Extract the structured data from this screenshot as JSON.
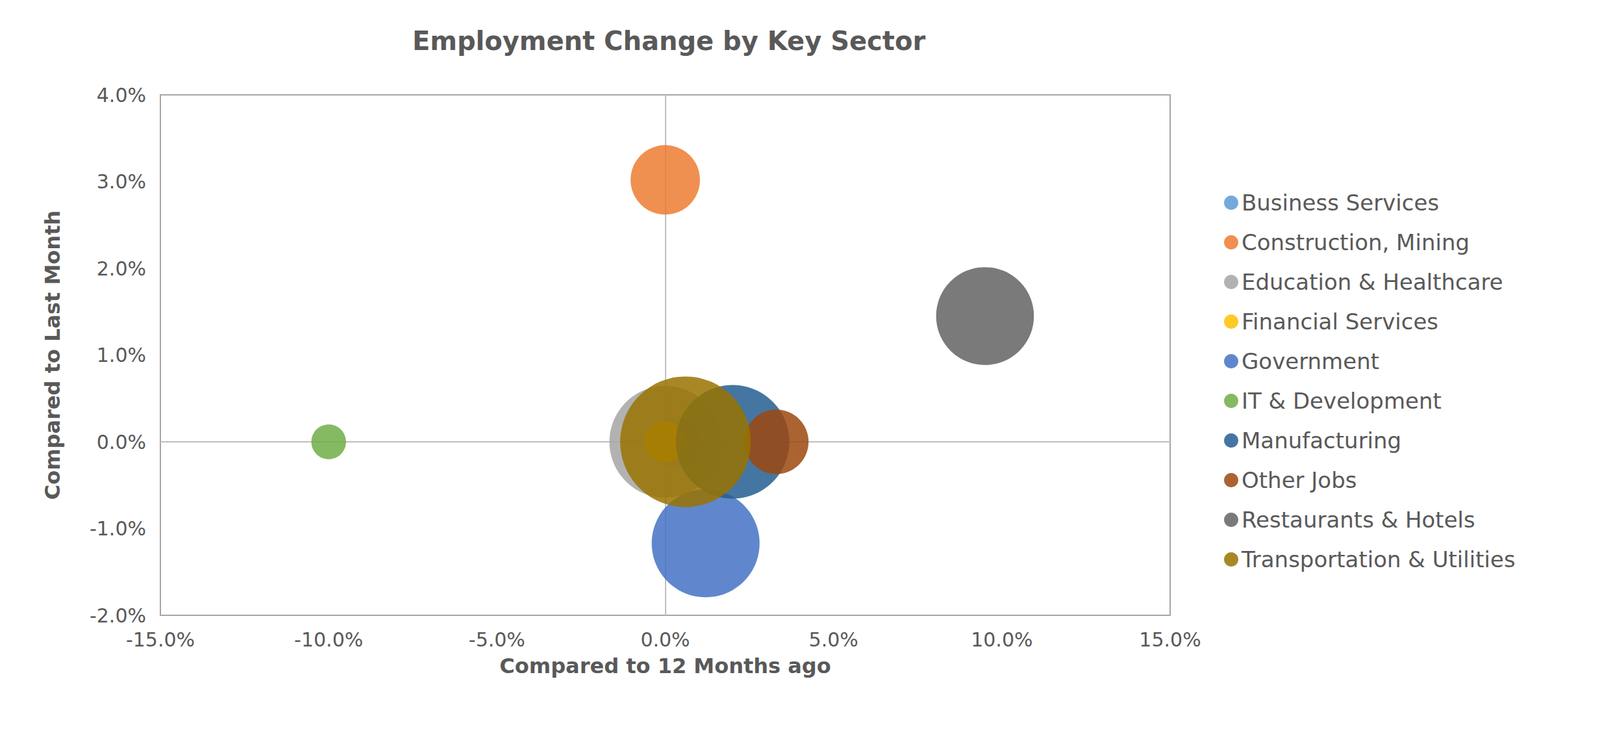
{
  "chart_data": {
    "type": "scatter",
    "title": "Employment Change by Key Sector",
    "x_label": "Compared to 12 Months ago",
    "y_label": "Compared to Last Month",
    "xlim": [
      -15,
      15
    ],
    "xticks": [
      {
        "value": -15,
        "label": "-15.0%"
      },
      {
        "value": -10,
        "label": "-10.0%"
      },
      {
        "value": -5,
        "label": "-5.0%"
      },
      {
        "value": 0,
        "label": "0.0%"
      },
      {
        "value": 5,
        "label": "5.0%"
      },
      {
        "value": 10,
        "label": "10.0%"
      },
      {
        "value": 15,
        "label": "15.0%"
      }
    ],
    "ylim": [
      -2,
      4
    ],
    "yticks": [
      {
        "value": -2,
        "label": "-2.0%"
      },
      {
        "value": -1,
        "label": "-1.0%"
      },
      {
        "value": 0,
        "label": "0.0%"
      },
      {
        "value": 1,
        "label": "1.0%"
      },
      {
        "value": 2,
        "label": "2.0%"
      },
      {
        "value": 3,
        "label": "3.0%"
      },
      {
        "value": 4,
        "label": "4.0%"
      }
    ],
    "grid": false,
    "legend": "right",
    "marker": "circle",
    "series": [
      {
        "name": "Business Services",
        "color": "#5b9bd5",
        "x": [
          0.3
        ],
        "values": [
          0.0
        ],
        "sizes": [
          6
        ]
      },
      {
        "name": "Construction, Mining",
        "color": "#ed7d31",
        "x": [
          0.0
        ],
        "values": [
          3.02
        ],
        "sizes": [
          11.6
        ]
      },
      {
        "name": "Education & Healthcare",
        "color": "#a5a5a5",
        "x": [
          0.0
        ],
        "values": [
          0.0
        ],
        "sizes": [
          30
        ]
      },
      {
        "name": "Financial Services",
        "color": "#ffc000",
        "x": [
          0.0
        ],
        "values": [
          0.0
        ],
        "sizes": [
          4
        ]
      },
      {
        "name": "Government",
        "color": "#4472c4",
        "x": [
          1.2
        ],
        "values": [
          -1.17
        ],
        "sizes": [
          28
        ]
      },
      {
        "name": "IT & Development",
        "color": "#70ad47",
        "x": [
          -10.0
        ],
        "values": [
          0.0
        ],
        "sizes": [
          2.9
        ]
      },
      {
        "name": "Manufacturing",
        "color": "#255e91",
        "x": [
          2.0
        ],
        "values": [
          0.0
        ],
        "sizes": [
          31
        ]
      },
      {
        "name": "Other Jobs",
        "color": "#9e480e",
        "x": [
          3.3
        ],
        "values": [
          0.0
        ],
        "sizes": [
          10
        ]
      },
      {
        "name": "Restaurants & Hotels",
        "color": "#636363",
        "x": [
          9.5
        ],
        "values": [
          1.45
        ],
        "sizes": [
          23
        ]
      },
      {
        "name": "Transportation & Utilities",
        "color": "#997300",
        "x": [
          0.6
        ],
        "values": [
          0.0
        ],
        "sizes": [
          41
        ]
      }
    ]
  }
}
